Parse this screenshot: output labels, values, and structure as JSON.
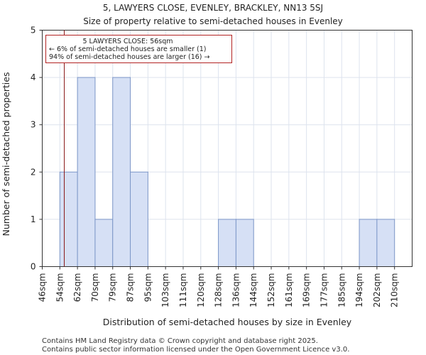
{
  "title": "5, LAWYERS CLOSE, EVENLEY, BRACKLEY, NN13 5SJ",
  "subtitle": "Size of property relative to semi-detached houses in Evenley",
  "footer": [
    "Contains HM Land Registry data © Crown copyright and database right 2025.",
    "Contains public sector information licensed under the Open Government Licence v3.0."
  ],
  "colors": {
    "bar_fill": "#d6e0f5",
    "bar_stroke": "#7d97c8",
    "marker": "#8b1a1a",
    "grid": "#dde3ee",
    "annotation_border": "#b22222"
  },
  "chart_data": {
    "type": "bar",
    "title": "5, LAWYERS CLOSE, EVENLEY, BRACKLEY, NN13 5SJ",
    "subtitle": "Size of property relative to semi-detached houses in Evenley",
    "xlabel": "Distribution of semi-detached houses by size in Evenley",
    "ylabel": "Number of semi-detached properties",
    "categories": [
      "46sqm",
      "54sqm",
      "62sqm",
      "70sqm",
      "79sqm",
      "87sqm",
      "95sqm",
      "103sqm",
      "111sqm",
      "120sqm",
      "128sqm",
      "136sqm",
      "144sqm",
      "152sqm",
      "161sqm",
      "169sqm",
      "177sqm",
      "185sqm",
      "194sqm",
      "202sqm",
      "210sqm"
    ],
    "values": [
      0,
      2,
      4,
      1,
      4,
      2,
      0,
      0,
      0,
      0,
      1,
      1,
      0,
      0,
      0,
      0,
      0,
      0,
      1,
      1,
      0
    ],
    "ylim": [
      0,
      5
    ],
    "yticks": [
      0,
      1,
      2,
      3,
      4,
      5
    ],
    "grid": true,
    "marker": {
      "value_sqm": 56,
      "label": "5 LAWYERS CLOSE: 56sqm",
      "line1": "← 6% of semi-detached houses are smaller (1)",
      "line2": "94% of semi-detached houses are larger (16) →"
    }
  }
}
